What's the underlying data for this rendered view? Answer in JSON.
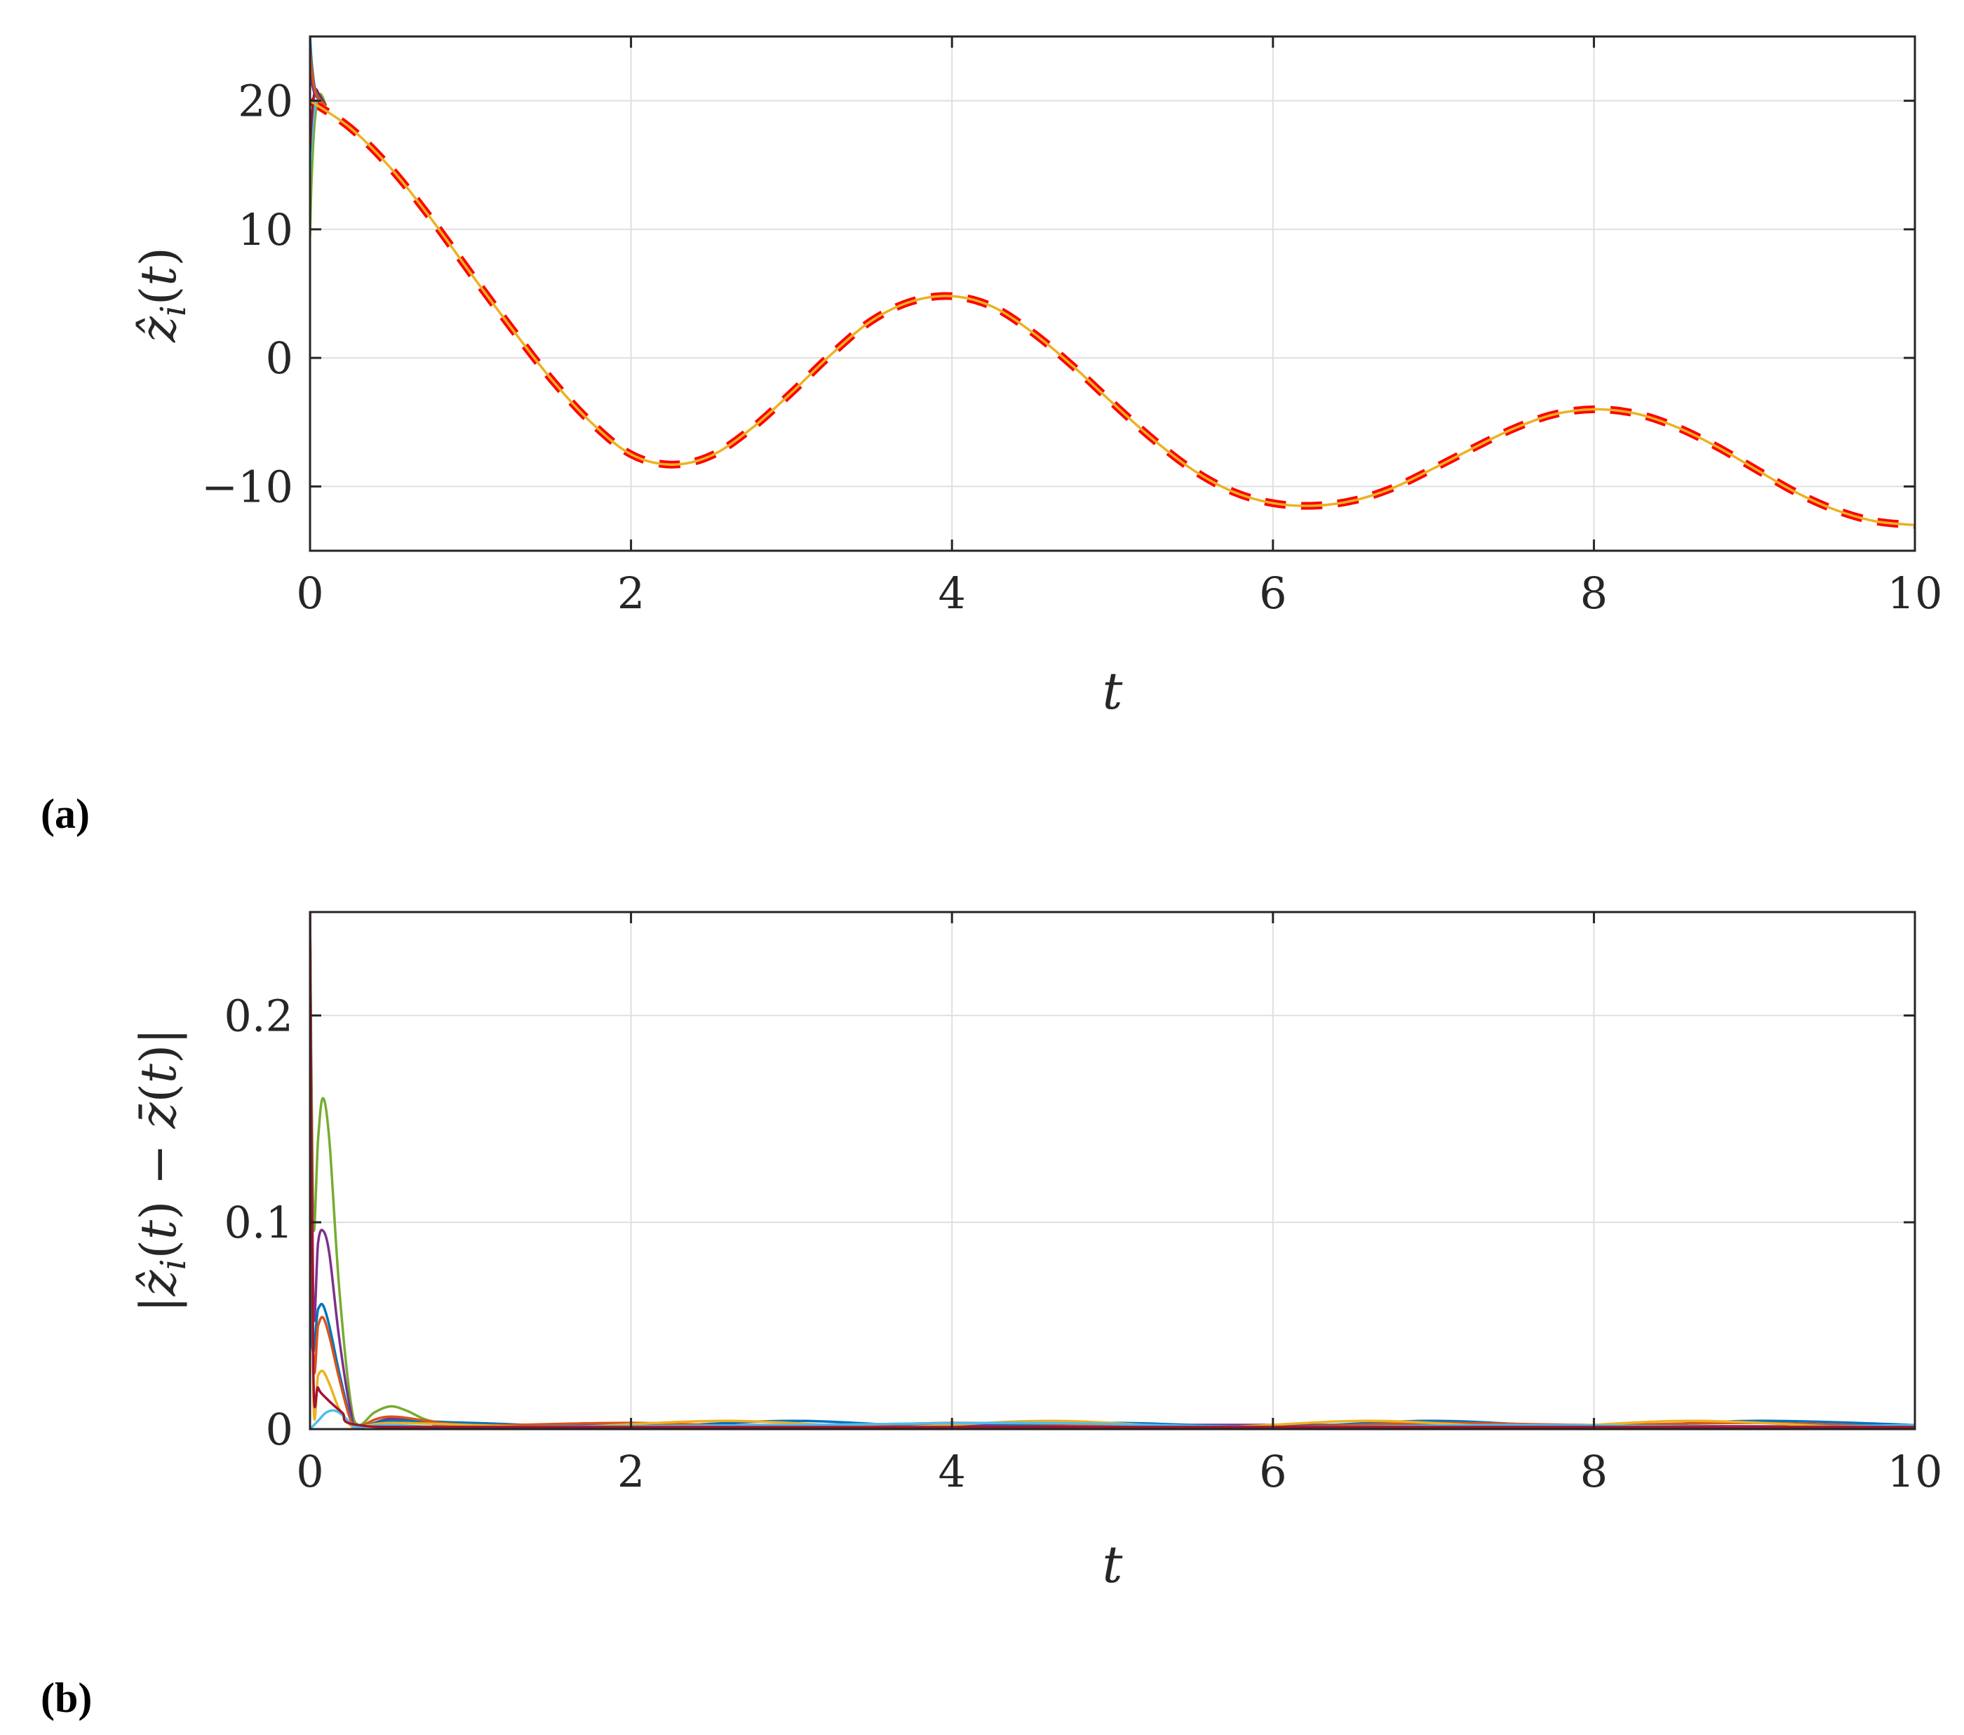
{
  "chart_data": [
    {
      "type": "line",
      "panel_label": "(a)",
      "xlabel": "t",
      "ylabel": "ẑ_i(t)",
      "xlim": [
        0,
        10
      ],
      "ylim": [
        -15,
        25
      ],
      "xticks": [
        0,
        2,
        4,
        6,
        8,
        10
      ],
      "yticks": [
        -10,
        0,
        10,
        20
      ],
      "ytick_labels": [
        "−10",
        "0",
        "10",
        "20"
      ],
      "grid": true,
      "series": [
        {
          "style": "dashed",
          "color": "#ff0000",
          "x": [
            0,
            0.25,
            0.5,
            0.75,
            1.0,
            1.25,
            1.5,
            1.75,
            2.0,
            2.25,
            2.5,
            2.75,
            3.0,
            3.25,
            3.5,
            3.75,
            4.0,
            4.25,
            4.5,
            4.75,
            5.0,
            5.25,
            5.5,
            5.75,
            6.0,
            6.25,
            6.5,
            6.75,
            7.0,
            7.25,
            7.5,
            7.75,
            8.0,
            8.25,
            8.5,
            8.75,
            9.0,
            9.25,
            9.5,
            9.75,
            10.0
          ],
          "y": [
            20.0,
            17.9,
            14.8,
            10.9,
            6.6,
            2.4,
            -1.6,
            -5.0,
            -7.5,
            -8.3,
            -7.6,
            -5.5,
            -2.7,
            0.3,
            2.9,
            4.4,
            4.8,
            4.0,
            2.0,
            -0.6,
            -3.5,
            -6.3,
            -8.7,
            -10.4,
            -11.3,
            -11.5,
            -11.1,
            -10.1,
            -8.6,
            -7.0,
            -5.5,
            -4.4,
            -4.0,
            -4.3,
            -5.3,
            -6.8,
            -8.6,
            -10.4,
            -11.8,
            -12.7,
            -13.0
          ]
        },
        {
          "style": "solid",
          "color": "#edb120",
          "x": [
            0,
            0.25,
            0.5,
            0.75,
            1.0,
            1.25,
            1.5,
            1.75,
            2.0,
            2.25,
            2.5,
            2.75,
            3.0,
            3.25,
            3.5,
            3.75,
            4.0,
            4.25,
            4.5,
            4.75,
            5.0,
            5.25,
            5.5,
            5.75,
            6.0,
            6.25,
            6.5,
            6.75,
            7.0,
            7.25,
            7.5,
            7.75,
            8.0,
            8.25,
            8.5,
            8.75,
            9.0,
            9.25,
            9.5,
            9.75,
            10.0
          ],
          "y": [
            20.0,
            17.9,
            14.8,
            10.9,
            6.6,
            2.4,
            -1.6,
            -5.0,
            -7.5,
            -8.3,
            -7.6,
            -5.5,
            -2.7,
            0.3,
            2.9,
            4.4,
            4.8,
            4.0,
            2.0,
            -0.6,
            -3.5,
            -6.3,
            -8.7,
            -10.4,
            -11.3,
            -11.5,
            -11.1,
            -10.1,
            -8.6,
            -7.0,
            -5.5,
            -4.4,
            -4.0,
            -4.3,
            -5.3,
            -6.8,
            -8.6,
            -10.4,
            -11.8,
            -12.7,
            -13.0
          ]
        },
        {
          "style": "solid",
          "color": "#77ac30",
          "x": [
            0,
            0.01,
            0.03,
            0.06,
            0.1
          ],
          "y": [
            9.5,
            14.0,
            18.5,
            20.5,
            19.6
          ]
        },
        {
          "style": "solid",
          "color": "#4dbeee",
          "x": [
            0,
            0.01,
            0.03,
            0.06,
            0.1
          ],
          "y": [
            14.5,
            17.0,
            19.5,
            20.2,
            19.6
          ]
        },
        {
          "style": "solid",
          "color": "#a2142f",
          "x": [
            0,
            0.01,
            0.03,
            0.06,
            0.1
          ],
          "y": [
            16.0,
            18.5,
            20.8,
            20.4,
            19.6
          ]
        },
        {
          "style": "solid",
          "color": "#7e2f8e",
          "x": [
            0,
            0.01,
            0.03,
            0.06,
            0.1
          ],
          "y": [
            22.5,
            21.5,
            20.5,
            20.1,
            19.6
          ]
        },
        {
          "style": "solid",
          "color": "#0072bd",
          "x": [
            0,
            0.01,
            0.03,
            0.06,
            0.1
          ],
          "y": [
            25.0,
            23.0,
            21.0,
            20.2,
            19.6
          ]
        },
        {
          "style": "solid",
          "color": "#d95319",
          "x": [
            0,
            0.01,
            0.03,
            0.06,
            0.1
          ],
          "y": [
            24.0,
            22.5,
            20.8,
            20.1,
            19.6
          ]
        }
      ]
    },
    {
      "type": "line",
      "panel_label": "(b)",
      "xlabel": "t",
      "ylabel": "|ẑ_i(t) − z̄(t)|",
      "xlim": [
        0,
        10
      ],
      "ylim": [
        0,
        0.25
      ],
      "xticks": [
        0,
        2,
        4,
        6,
        8,
        10
      ],
      "yticks": [
        0,
        0.1,
        0.2
      ],
      "ytick_labels": [
        "0",
        "0.1",
        "0.2"
      ],
      "grid": true,
      "series": [
        {
          "color": "#77ac30",
          "x": [
            0,
            0.02,
            0.05,
            0.08,
            0.12,
            0.18,
            0.25,
            0.3,
            0.4,
            0.5,
            0.6,
            0.75,
            1.0,
            2.0,
            4.0,
            6.0,
            8.0,
            10.0
          ],
          "y": [
            0.25,
            0.1,
            0.14,
            0.16,
            0.14,
            0.07,
            0.015,
            0.002,
            0.008,
            0.011,
            0.009,
            0.004,
            0.002,
            0.001,
            0.001,
            0.001,
            0.001,
            0.001
          ]
        },
        {
          "color": "#7e2f8e",
          "x": [
            0,
            0.02,
            0.05,
            0.08,
            0.12,
            0.18,
            0.25,
            0.3,
            0.5,
            0.75,
            1.0,
            3.0,
            5.0,
            7.0,
            10.0
          ],
          "y": [
            0.25,
            0.06,
            0.09,
            0.096,
            0.085,
            0.045,
            0.01,
            0.001,
            0.005,
            0.003,
            0.002,
            0.002,
            0.002,
            0.002,
            0.001
          ]
        },
        {
          "color": "#0072bd",
          "x": [
            0,
            0.01,
            0.05,
            0.08,
            0.12,
            0.18,
            0.25,
            0.3,
            0.5,
            1.0,
            2.0,
            3.0,
            4.0,
            5.0,
            6.0,
            7.0,
            8.0,
            9.0,
            10.0
          ],
          "y": [
            0.25,
            0.05,
            0.058,
            0.06,
            0.05,
            0.028,
            0.006,
            0.001,
            0.004,
            0.003,
            0.001,
            0.004,
            0.001,
            0.003,
            0.001,
            0.004,
            0.001,
            0.004,
            0.002
          ]
        },
        {
          "color": "#d95319",
          "x": [
            0,
            0.02,
            0.05,
            0.08,
            0.12,
            0.18,
            0.25,
            0.3,
            0.5,
            1.0,
            2.0,
            3.0,
            4.0,
            5.0,
            6.0,
            7.0,
            8.0,
            9.0,
            10.0
          ],
          "y": [
            0.25,
            0.04,
            0.05,
            0.054,
            0.045,
            0.025,
            0.005,
            0.001,
            0.006,
            0.002,
            0.003,
            0.001,
            0.003,
            0.002,
            0.001,
            0.003,
            0.002,
            0.003,
            0.001
          ]
        },
        {
          "color": "#edb120",
          "x": [
            0,
            0.02,
            0.05,
            0.08,
            0.12,
            0.18,
            0.25,
            0.3,
            0.5,
            1.0,
            1.6,
            2.6,
            3.6,
            4.6,
            5.6,
            6.6,
            7.6,
            8.6,
            9.6,
            10.0
          ],
          "y": [
            0.25,
            0.02,
            0.026,
            0.028,
            0.022,
            0.01,
            0.002,
            0.001,
            0.003,
            0.002,
            0.001,
            0.004,
            0.001,
            0.004,
            0.001,
            0.004,
            0.001,
            0.004,
            0.001,
            0.002
          ]
        },
        {
          "color": "#4dbeee",
          "x": [
            0,
            0.05,
            0.1,
            0.15,
            0.2,
            0.25,
            0.3,
            0.5,
            1.0,
            3.0,
            4.5,
            6.0,
            7.5,
            9.0,
            10.0
          ],
          "y": [
            0.0,
            0.004,
            0.008,
            0.009,
            0.007,
            0.003,
            0.001,
            0.002,
            0.001,
            0.002,
            0.003,
            0.001,
            0.002,
            0.001,
            0.002
          ]
        },
        {
          "color": "#a2142f",
          "x": [
            0,
            0.02,
            0.05,
            0.1,
            0.2,
            0.3,
            1.0,
            5.0,
            10.0
          ],
          "y": [
            0.25,
            0.03,
            0.02,
            0.015,
            0.008,
            0.002,
            0.001,
            0.001,
            0.001
          ]
        }
      ]
    }
  ]
}
